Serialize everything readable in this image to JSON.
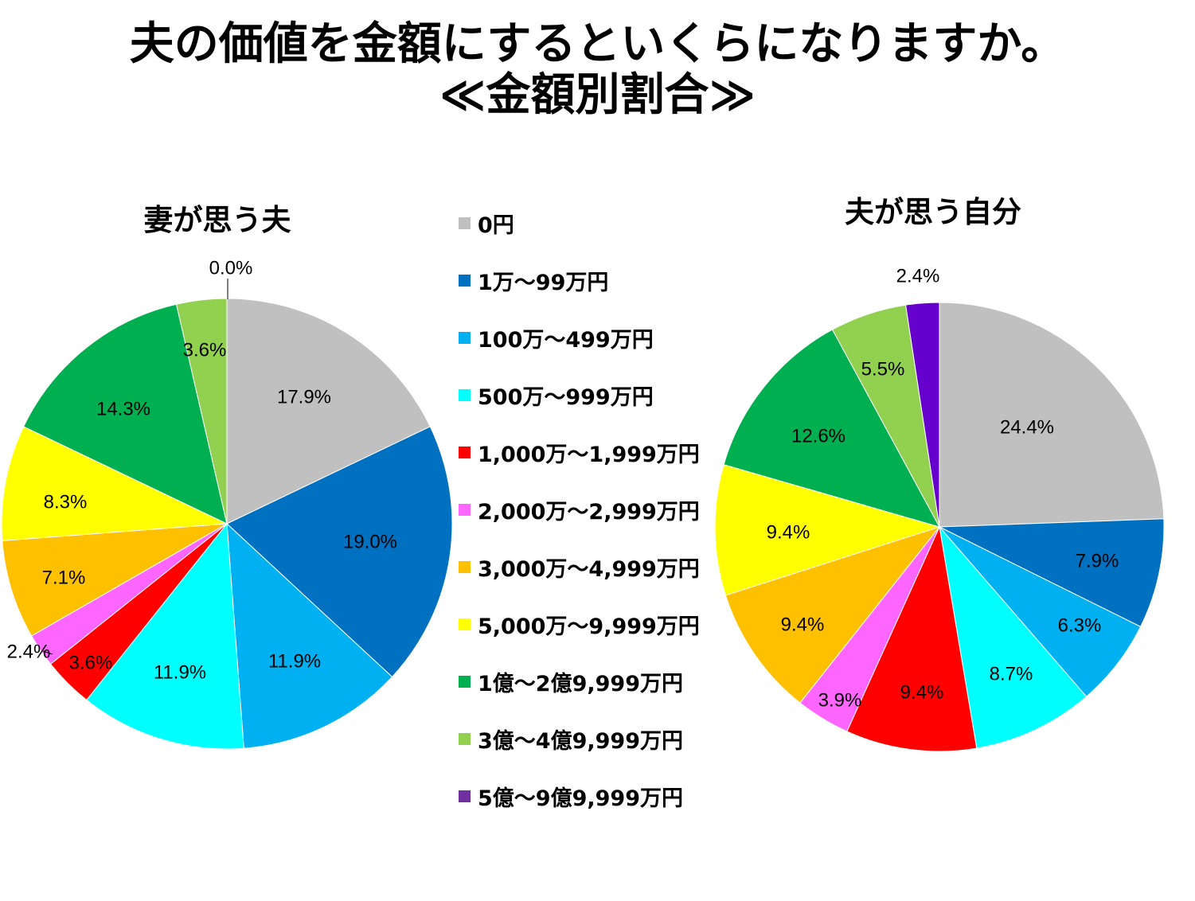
{
  "title": {
    "line1": "夫の価値を金額にするといくらになりますか。",
    "line2": "≪金額別割合≫"
  },
  "colors": [
    "#c0c0c0",
    "#0070c0",
    "#00b0f0",
    "#00ffff",
    "#ff0000",
    "#ff66ff",
    "#ffc000",
    "#ffff00",
    "#00b050",
    "#92d050",
    "#6600cc"
  ],
  "chart_data": [
    {
      "type": "pie",
      "title": "妻が思う夫",
      "categories": [
        "0円",
        "1万～99万円",
        "100万～499万円",
        "500万～999万円",
        "1,000万～1,999万円",
        "2,000万～2,999万円",
        "3,000万～4,999万円",
        "5,000万～9,999万円",
        "1億～2億9,999万円",
        "3億～4億9,999万円",
        "5億～9億9,999万円"
      ],
      "values": [
        17.9,
        19.0,
        11.9,
        11.9,
        3.6,
        2.4,
        7.1,
        8.3,
        14.3,
        3.6,
        0.0
      ],
      "data_labels": [
        "17.9%",
        "19.0%",
        "11.9%",
        "11.9%",
        "3.6%",
        "2.4%",
        "7.1%",
        "8.3%",
        "14.3%",
        "3.6%",
        "0.0%"
      ]
    },
    {
      "type": "pie",
      "title": "夫が思う自分",
      "categories": [
        "0円",
        "1万～99万円",
        "100万～499万円",
        "500万～999万円",
        "1,000万～1,999万円",
        "2,000万～2,999万円",
        "3,000万～4,999万円",
        "5,000万～9,999万円",
        "1億～2億9,999万円",
        "3億～4億9,999万円",
        "5億～9億9,999万円"
      ],
      "values": [
        24.4,
        7.9,
        6.3,
        8.7,
        9.4,
        3.9,
        9.4,
        9.4,
        12.6,
        5.5,
        2.4
      ],
      "data_labels": [
        "24.4%",
        "7.9%",
        "6.3%",
        "8.7%",
        "9.4%",
        "3.9%",
        "9.4%",
        "9.4%",
        "12.6%",
        "5.5%",
        "2.4%"
      ]
    }
  ],
  "legend": {
    "items": [
      "0円",
      "1万～99万円",
      "100万～499万円",
      "500万～999万円",
      "1,000万～1,999万円",
      "2,000万～2,999万円",
      "3,000万～4,999万円",
      "5,000万～9,999万円",
      "1億～2億9,999万円",
      "3億～4億9,999万円",
      "5億～9億9,999万円"
    ],
    "colors": [
      "#c0c0c0",
      "#0070c0",
      "#00b0f0",
      "#00ffff",
      "#ff0000",
      "#ff66ff",
      "#ffc000",
      "#ffff00",
      "#00b050",
      "#92d050",
      "#7030a0"
    ]
  }
}
